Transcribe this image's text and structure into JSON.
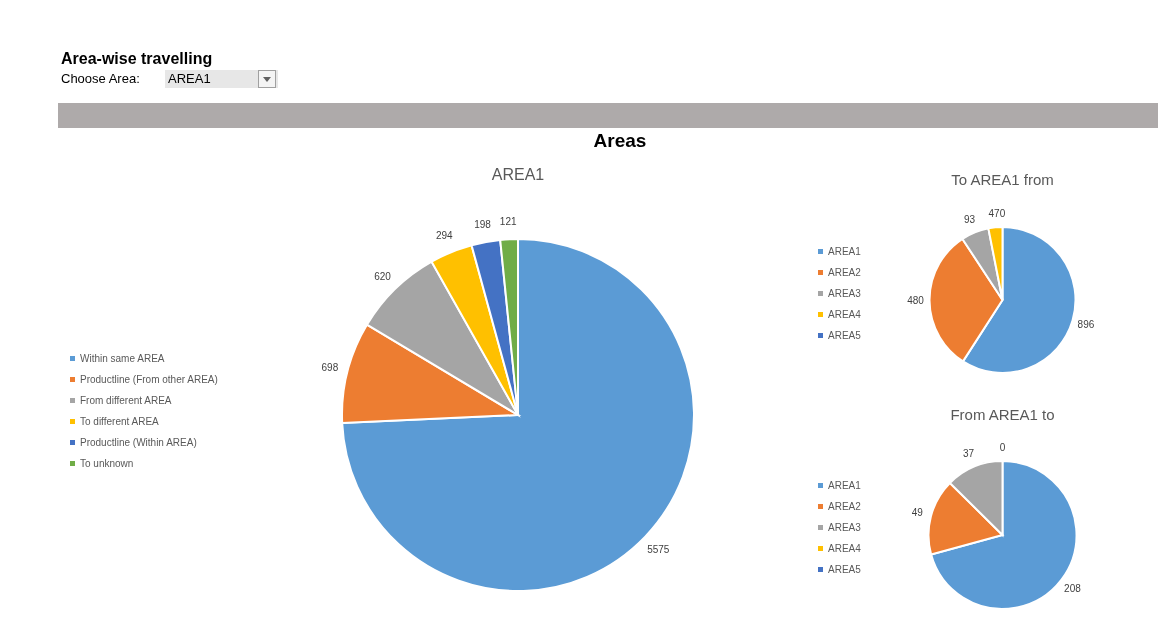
{
  "chart_data": [
    {
      "type": "pie",
      "title": "AREA1",
      "annotations": [
        "Area-wise travelling",
        "Choose Area:",
        "AREA1",
        "Areas"
      ],
      "categories": [
        "Within same AREA",
        "Productline (From other AREA)",
        "From different AREA",
        "To different AREA",
        "Productline (Within AREA)",
        "To unknown"
      ],
      "values": [
        5575,
        698,
        620,
        294,
        198,
        121
      ],
      "colors": [
        "#5b9bd5",
        "#ed7d31",
        "#a5a5a5",
        "#ffc000",
        "#4472c4",
        "#70ad47"
      ],
      "data_labels": true,
      "legend": "left"
    },
    {
      "type": "pie",
      "title": "To AREA1 from",
      "categories": [
        "AREA1",
        "AREA2",
        "AREA3",
        "AREA4",
        "AREA5"
      ],
      "values": [
        896,
        480,
        93,
        47,
        0
      ],
      "value_labels": [
        "896",
        "480",
        "93",
        "47",
        "0"
      ],
      "colors": [
        "#5b9bd5",
        "#ed7d31",
        "#a5a5a5",
        "#ffc000",
        "#4472c4"
      ],
      "legend": "left"
    },
    {
      "type": "pie",
      "title": "From AREA1 to",
      "categories": [
        "AREA1",
        "AREA2",
        "AREA3",
        "AREA4",
        "AREA5"
      ],
      "values": [
        208,
        49,
        37,
        0,
        null
      ],
      "value_labels": [
        "208",
        "49",
        "37",
        "0",
        null
      ],
      "colors": [
        "#5b9bd5",
        "#ed7d31",
        "#a5a5a5",
        "#ffc000",
        "#4472c4"
      ],
      "legend": "left"
    }
  ]
}
